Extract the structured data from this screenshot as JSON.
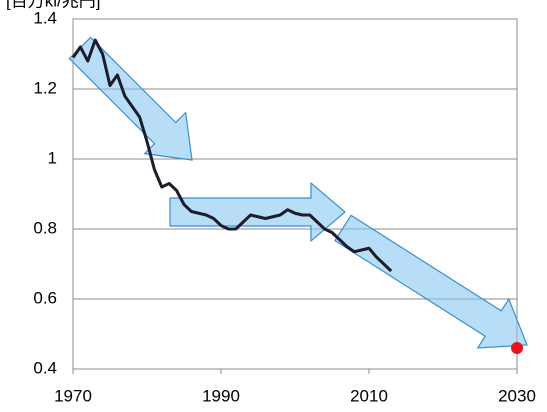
{
  "chart_data": {
    "type": "line",
    "y_label": "[百万kl/兆円]",
    "x": [
      1970,
      1971,
      1972,
      1973,
      1974,
      1975,
      1976,
      1977,
      1978,
      1979,
      1980,
      1981,
      1982,
      1983,
      1984,
      1985,
      1986,
      1987,
      1988,
      1989,
      1990,
      1991,
      1992,
      1993,
      1994,
      1995,
      1996,
      1997,
      1998,
      1999,
      2000,
      2001,
      2002,
      2003,
      2004,
      2005,
      2006,
      2007,
      2008,
      2009,
      2010,
      2011,
      2012,
      2013
    ],
    "series": [
      {
        "color": "#1c1c2c",
        "values": [
          1.29,
          1.32,
          1.28,
          1.34,
          1.3,
          1.21,
          1.24,
          1.18,
          1.15,
          1.12,
          1.05,
          0.97,
          0.92,
          0.93,
          0.91,
          0.87,
          0.85,
          0.845,
          0.84,
          0.83,
          0.81,
          0.8,
          0.8,
          0.82,
          0.84,
          0.835,
          0.83,
          0.835,
          0.84,
          0.855,
          0.845,
          0.84,
          0.84,
          0.82,
          0.8,
          0.79,
          0.77,
          0.75,
          0.735,
          0.74,
          0.745,
          0.72,
          0.7,
          0.68
        ]
      }
    ],
    "target": {
      "x": 2030,
      "value": 0.46,
      "color": "#e8141c"
    },
    "xlim": [
      1970,
      2030
    ],
    "xticks": [
      1970,
      1990,
      2010,
      2030
    ],
    "ylim": [
      0.4,
      1.4
    ],
    "yticks": [
      0.4,
      0.6,
      0.8,
      1,
      1.2,
      1.4
    ],
    "grid": true
  }
}
